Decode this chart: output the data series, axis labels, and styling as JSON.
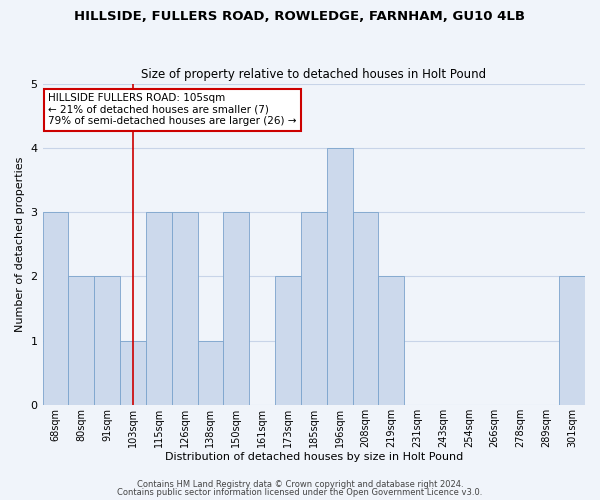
{
  "title": "HILLSIDE, FULLERS ROAD, ROWLEDGE, FARNHAM, GU10 4LB",
  "subtitle": "Size of property relative to detached houses in Holt Pound",
  "xlabel": "Distribution of detached houses by size in Holt Pound",
  "ylabel": "Number of detached properties",
  "categories": [
    "68sqm",
    "80sqm",
    "91sqm",
    "103sqm",
    "115sqm",
    "126sqm",
    "138sqm",
    "150sqm",
    "161sqm",
    "173sqm",
    "185sqm",
    "196sqm",
    "208sqm",
    "219sqm",
    "231sqm",
    "243sqm",
    "254sqm",
    "266sqm",
    "278sqm",
    "289sqm",
    "301sqm"
  ],
  "values": [
    3,
    2,
    2,
    1,
    3,
    3,
    1,
    3,
    0,
    2,
    3,
    4,
    3,
    2,
    0,
    0,
    0,
    0,
    0,
    0,
    2
  ],
  "bar_color": "#ccd9ec",
  "bar_edge_color": "#7ba3cc",
  "redline_index": 3,
  "annotation_title": "HILLSIDE FULLERS ROAD: 105sqm",
  "annotation_line1": "← 21% of detached houses are smaller (7)",
  "annotation_line2": "79% of semi-detached houses are larger (26) →",
  "ylim": [
    0,
    5
  ],
  "yticks": [
    0,
    1,
    2,
    3,
    4,
    5
  ],
  "footer1": "Contains HM Land Registry data © Crown copyright and database right 2024.",
  "footer2": "Contains public sector information licensed under the Open Government Licence v3.0.",
  "bg_color": "#f0f4fa",
  "grid_color": "#c8d4e8",
  "annotation_box_edge": "#cc0000",
  "redline_color": "#cc0000"
}
